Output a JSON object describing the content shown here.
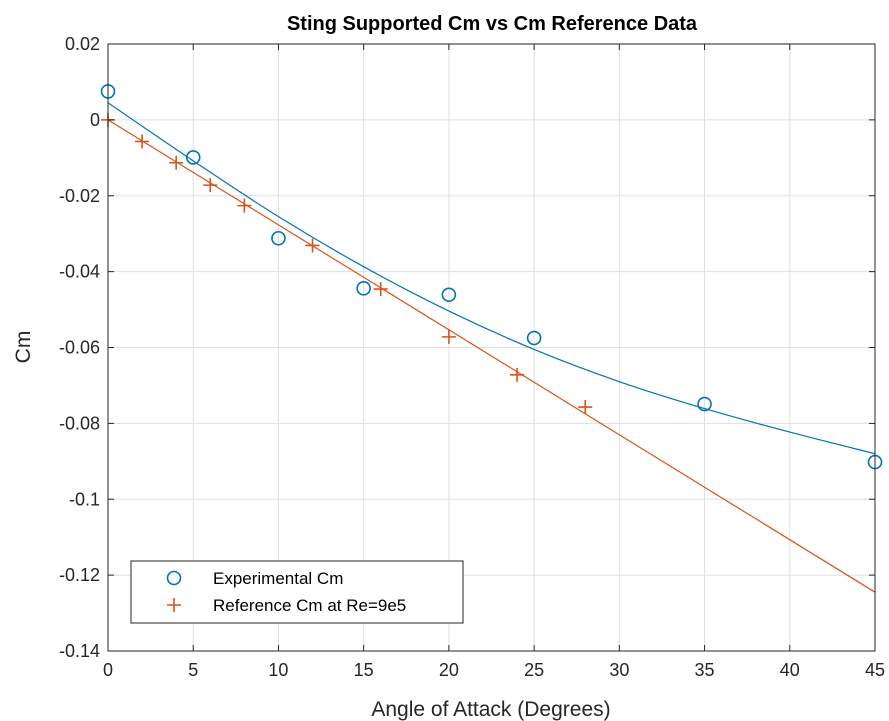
{
  "chart_data": {
    "type": "scatter",
    "title": "Sting Supported Cm vs Cm Reference Data",
    "xlabel": "Angle of Attack (Degrees)",
    "ylabel": "Cm",
    "xlim": [
      0,
      45
    ],
    "ylim": [
      -0.14,
      0.02
    ],
    "xticks": [
      0,
      5,
      10,
      15,
      20,
      25,
      30,
      35,
      40,
      45
    ],
    "xtick_labels": [
      "0",
      "5",
      "10",
      "15",
      "20",
      "25",
      "30",
      "35",
      "40",
      "45"
    ],
    "yticks": [
      0.02,
      0,
      -0.02,
      -0.04,
      -0.06,
      -0.08,
      -0.1,
      -0.12,
      -0.14
    ],
    "ytick_labels": [
      "0.02",
      "0",
      "-0.02",
      "-0.04",
      "-0.06",
      "-0.08",
      "-0.1",
      "-0.12",
      "-0.14"
    ],
    "grid": true,
    "legend_position": "bottom-left",
    "series": [
      {
        "name": "Experimental Cm",
        "marker": "circle",
        "color": "#0072BD",
        "x": [
          0,
          5,
          10,
          15,
          20,
          25,
          35,
          45
        ],
        "y": [
          0.0075,
          -0.0099,
          -0.0312,
          -0.0444,
          -0.0461,
          -0.0575,
          -0.0749,
          -0.0902
        ],
        "fit_line": {
          "type": "quadratic",
          "x": [
            0,
            5,
            10,
            15,
            20,
            25,
            30,
            35,
            40,
            45
          ],
          "y": [
            0.0045,
            -0.0108,
            -0.0255,
            -0.0387,
            -0.0504,
            -0.0605,
            -0.069,
            -0.0761,
            -0.0823,
            -0.088
          ]
        }
      },
      {
        "name": "Reference Cm at Re=9e5",
        "marker": "plus",
        "color": "#D95319",
        "x": [
          0,
          2,
          4,
          6,
          8,
          12,
          16,
          20,
          24,
          28
        ],
        "y": [
          0.0,
          -0.0057,
          -0.0113,
          -0.0172,
          -0.0226,
          -0.0331,
          -0.0446,
          -0.0572,
          -0.0672,
          -0.0757
        ],
        "fit_line": {
          "type": "linear",
          "x": [
            0,
            45
          ],
          "y": [
            0.0,
            -0.1245
          ]
        }
      }
    ]
  }
}
